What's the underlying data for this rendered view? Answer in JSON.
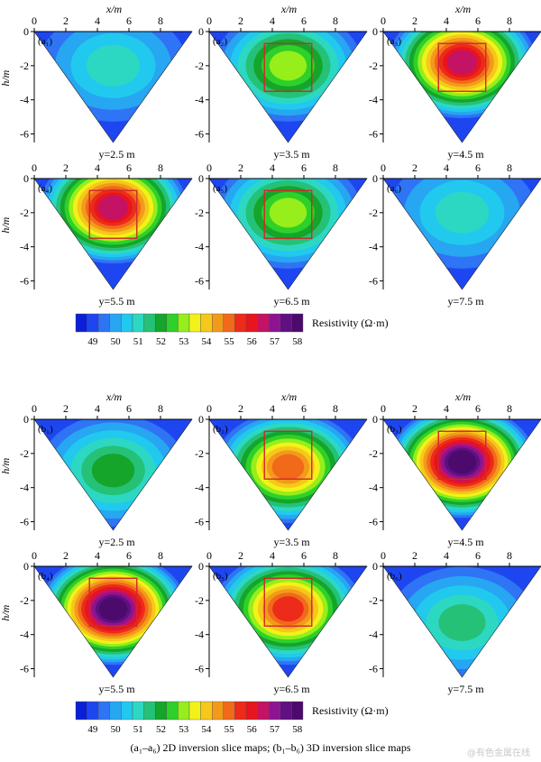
{
  "figure": {
    "x_axis_label": "x/m",
    "y_axis_label": "h/m",
    "x_ticks": [
      "0",
      "2",
      "4",
      "6",
      "8"
    ],
    "y_ticks": [
      "0",
      "-2",
      "-4",
      "-6"
    ],
    "caption": "(a₁–a₆) 2D inversion slice maps; (b₁–b₆) 3D  inversion slice maps",
    "watermark": "@有色金属在线"
  },
  "colorbar": {
    "label": "Resistivity (Ω·m)",
    "tick_labels": [
      "49",
      "50",
      "51",
      "52",
      "53",
      "54",
      "55",
      "56",
      "57",
      "58"
    ],
    "colors": [
      "#0a1fd8",
      "#1e46f0",
      "#2e74f5",
      "#27a6f2",
      "#21c9ef",
      "#2dd8c2",
      "#25c177",
      "#14a52a",
      "#2ed02a",
      "#96ee1a",
      "#f2f21a",
      "#f6c81b",
      "#f39a1b",
      "#f06a1a",
      "#ed2b1a",
      "#e8141e",
      "#c41264",
      "#8c1492",
      "#601080",
      "#4c0a6c"
    ]
  },
  "chart_data": [
    {
      "id": "a1",
      "label": "(a₁)",
      "y_position_label": "y=2.5 m",
      "x_range": [
        0,
        10
      ],
      "h_range": [
        -6.5,
        0
      ],
      "anomaly": {
        "center_x": 5.0,
        "center_h": -2.0,
        "peak_resistivity_ohm_m": 51.3
      },
      "survey_box": null
    },
    {
      "id": "a2",
      "label": "(a₂)",
      "y_position_label": "y=3.5 m",
      "x_range": [
        0,
        10
      ],
      "h_range": [
        -6.5,
        0
      ],
      "anomaly": {
        "center_x": 5.0,
        "center_h": -2.0,
        "peak_resistivity_ohm_m": 53.0
      },
      "survey_box": {
        "x": [
          3.5,
          6.5
        ],
        "h": [
          -0.7,
          -3.5
        ]
      }
    },
    {
      "id": "a3",
      "label": "(a₃)",
      "y_position_label": "y=4.5 m",
      "x_range": [
        0,
        10
      ],
      "h_range": [
        -6.5,
        0
      ],
      "anomaly": {
        "center_x": 5.0,
        "center_h": -1.8,
        "peak_resistivity_ohm_m": 56.5
      },
      "survey_box": {
        "x": [
          3.5,
          6.5
        ],
        "h": [
          -0.7,
          -3.5
        ]
      }
    },
    {
      "id": "a4",
      "label": "(a₄)",
      "y_position_label": "y=5.5 m",
      "x_range": [
        0,
        10
      ],
      "h_range": [
        -6.5,
        0
      ],
      "anomaly": {
        "center_x": 5.0,
        "center_h": -1.7,
        "peak_resistivity_ohm_m": 56.5
      },
      "survey_box": {
        "x": [
          3.5,
          6.5
        ],
        "h": [
          -0.7,
          -3.5
        ]
      }
    },
    {
      "id": "a5",
      "label": "(a₅)",
      "y_position_label": "y=6.5 m",
      "x_range": [
        0,
        10
      ],
      "h_range": [
        -6.5,
        0
      ],
      "anomaly": {
        "center_x": 5.0,
        "center_h": -2.0,
        "peak_resistivity_ohm_m": 53.0
      },
      "survey_box": {
        "x": [
          3.5,
          6.5
        ],
        "h": [
          -0.7,
          -3.5
        ]
      }
    },
    {
      "id": "a6",
      "label": "(a₆)",
      "y_position_label": "y=7.5 m",
      "x_range": [
        0,
        10
      ],
      "h_range": [
        -6.5,
        0
      ],
      "anomaly": {
        "center_x": 5.0,
        "center_h": -2.0,
        "peak_resistivity_ohm_m": 51.3
      },
      "survey_box": null
    },
    {
      "id": "b1",
      "label": "(b₁)",
      "y_position_label": "y=2.5 m",
      "x_range": [
        0,
        10
      ],
      "h_range": [
        -6.5,
        0
      ],
      "anomaly": {
        "center_x": 5.0,
        "center_h": -3.0,
        "peak_resistivity_ohm_m": 52.0
      },
      "survey_box": null
    },
    {
      "id": "b2",
      "label": "(b₂)",
      "y_position_label": "y=3.5 m",
      "x_range": [
        0,
        10
      ],
      "h_range": [
        -6.5,
        0
      ],
      "anomaly": {
        "center_x": 5.0,
        "center_h": -2.8,
        "peak_resistivity_ohm_m": 55.0
      },
      "survey_box": {
        "x": [
          3.5,
          6.5
        ],
        "h": [
          -0.7,
          -3.5
        ]
      }
    },
    {
      "id": "b3",
      "label": "(b₃)",
      "y_position_label": "y=4.5 m",
      "x_range": [
        0,
        10
      ],
      "h_range": [
        -6.5,
        0
      ],
      "anomaly": {
        "center_x": 5.0,
        "center_h": -2.5,
        "peak_resistivity_ohm_m": 58.2
      },
      "survey_box": {
        "x": [
          3.5,
          6.5
        ],
        "h": [
          -0.7,
          -3.5
        ]
      }
    },
    {
      "id": "b4",
      "label": "(b₄)",
      "y_position_label": "y=5.5 m",
      "x_range": [
        0,
        10
      ],
      "h_range": [
        -6.5,
        0
      ],
      "anomaly": {
        "center_x": 5.0,
        "center_h": -2.5,
        "peak_resistivity_ohm_m": 58.0
      },
      "survey_box": {
        "x": [
          3.5,
          6.5
        ],
        "h": [
          -0.7,
          -3.5
        ]
      }
    },
    {
      "id": "b5",
      "label": "(b₅)",
      "y_position_label": "y=6.5 m",
      "x_range": [
        0,
        10
      ],
      "h_range": [
        -6.5,
        0
      ],
      "anomaly": {
        "center_x": 5.0,
        "center_h": -2.5,
        "peak_resistivity_ohm_m": 55.5
      },
      "survey_box": {
        "x": [
          3.5,
          6.5
        ],
        "h": [
          -0.7,
          -3.5
        ]
      }
    },
    {
      "id": "b6",
      "label": "(b₆)",
      "y_position_label": "y=7.5 m",
      "x_range": [
        0,
        10
      ],
      "h_range": [
        -6.5,
        0
      ],
      "anomaly": {
        "center_x": 5.0,
        "center_h": -3.3,
        "peak_resistivity_ohm_m": 51.5
      },
      "survey_box": null
    }
  ]
}
